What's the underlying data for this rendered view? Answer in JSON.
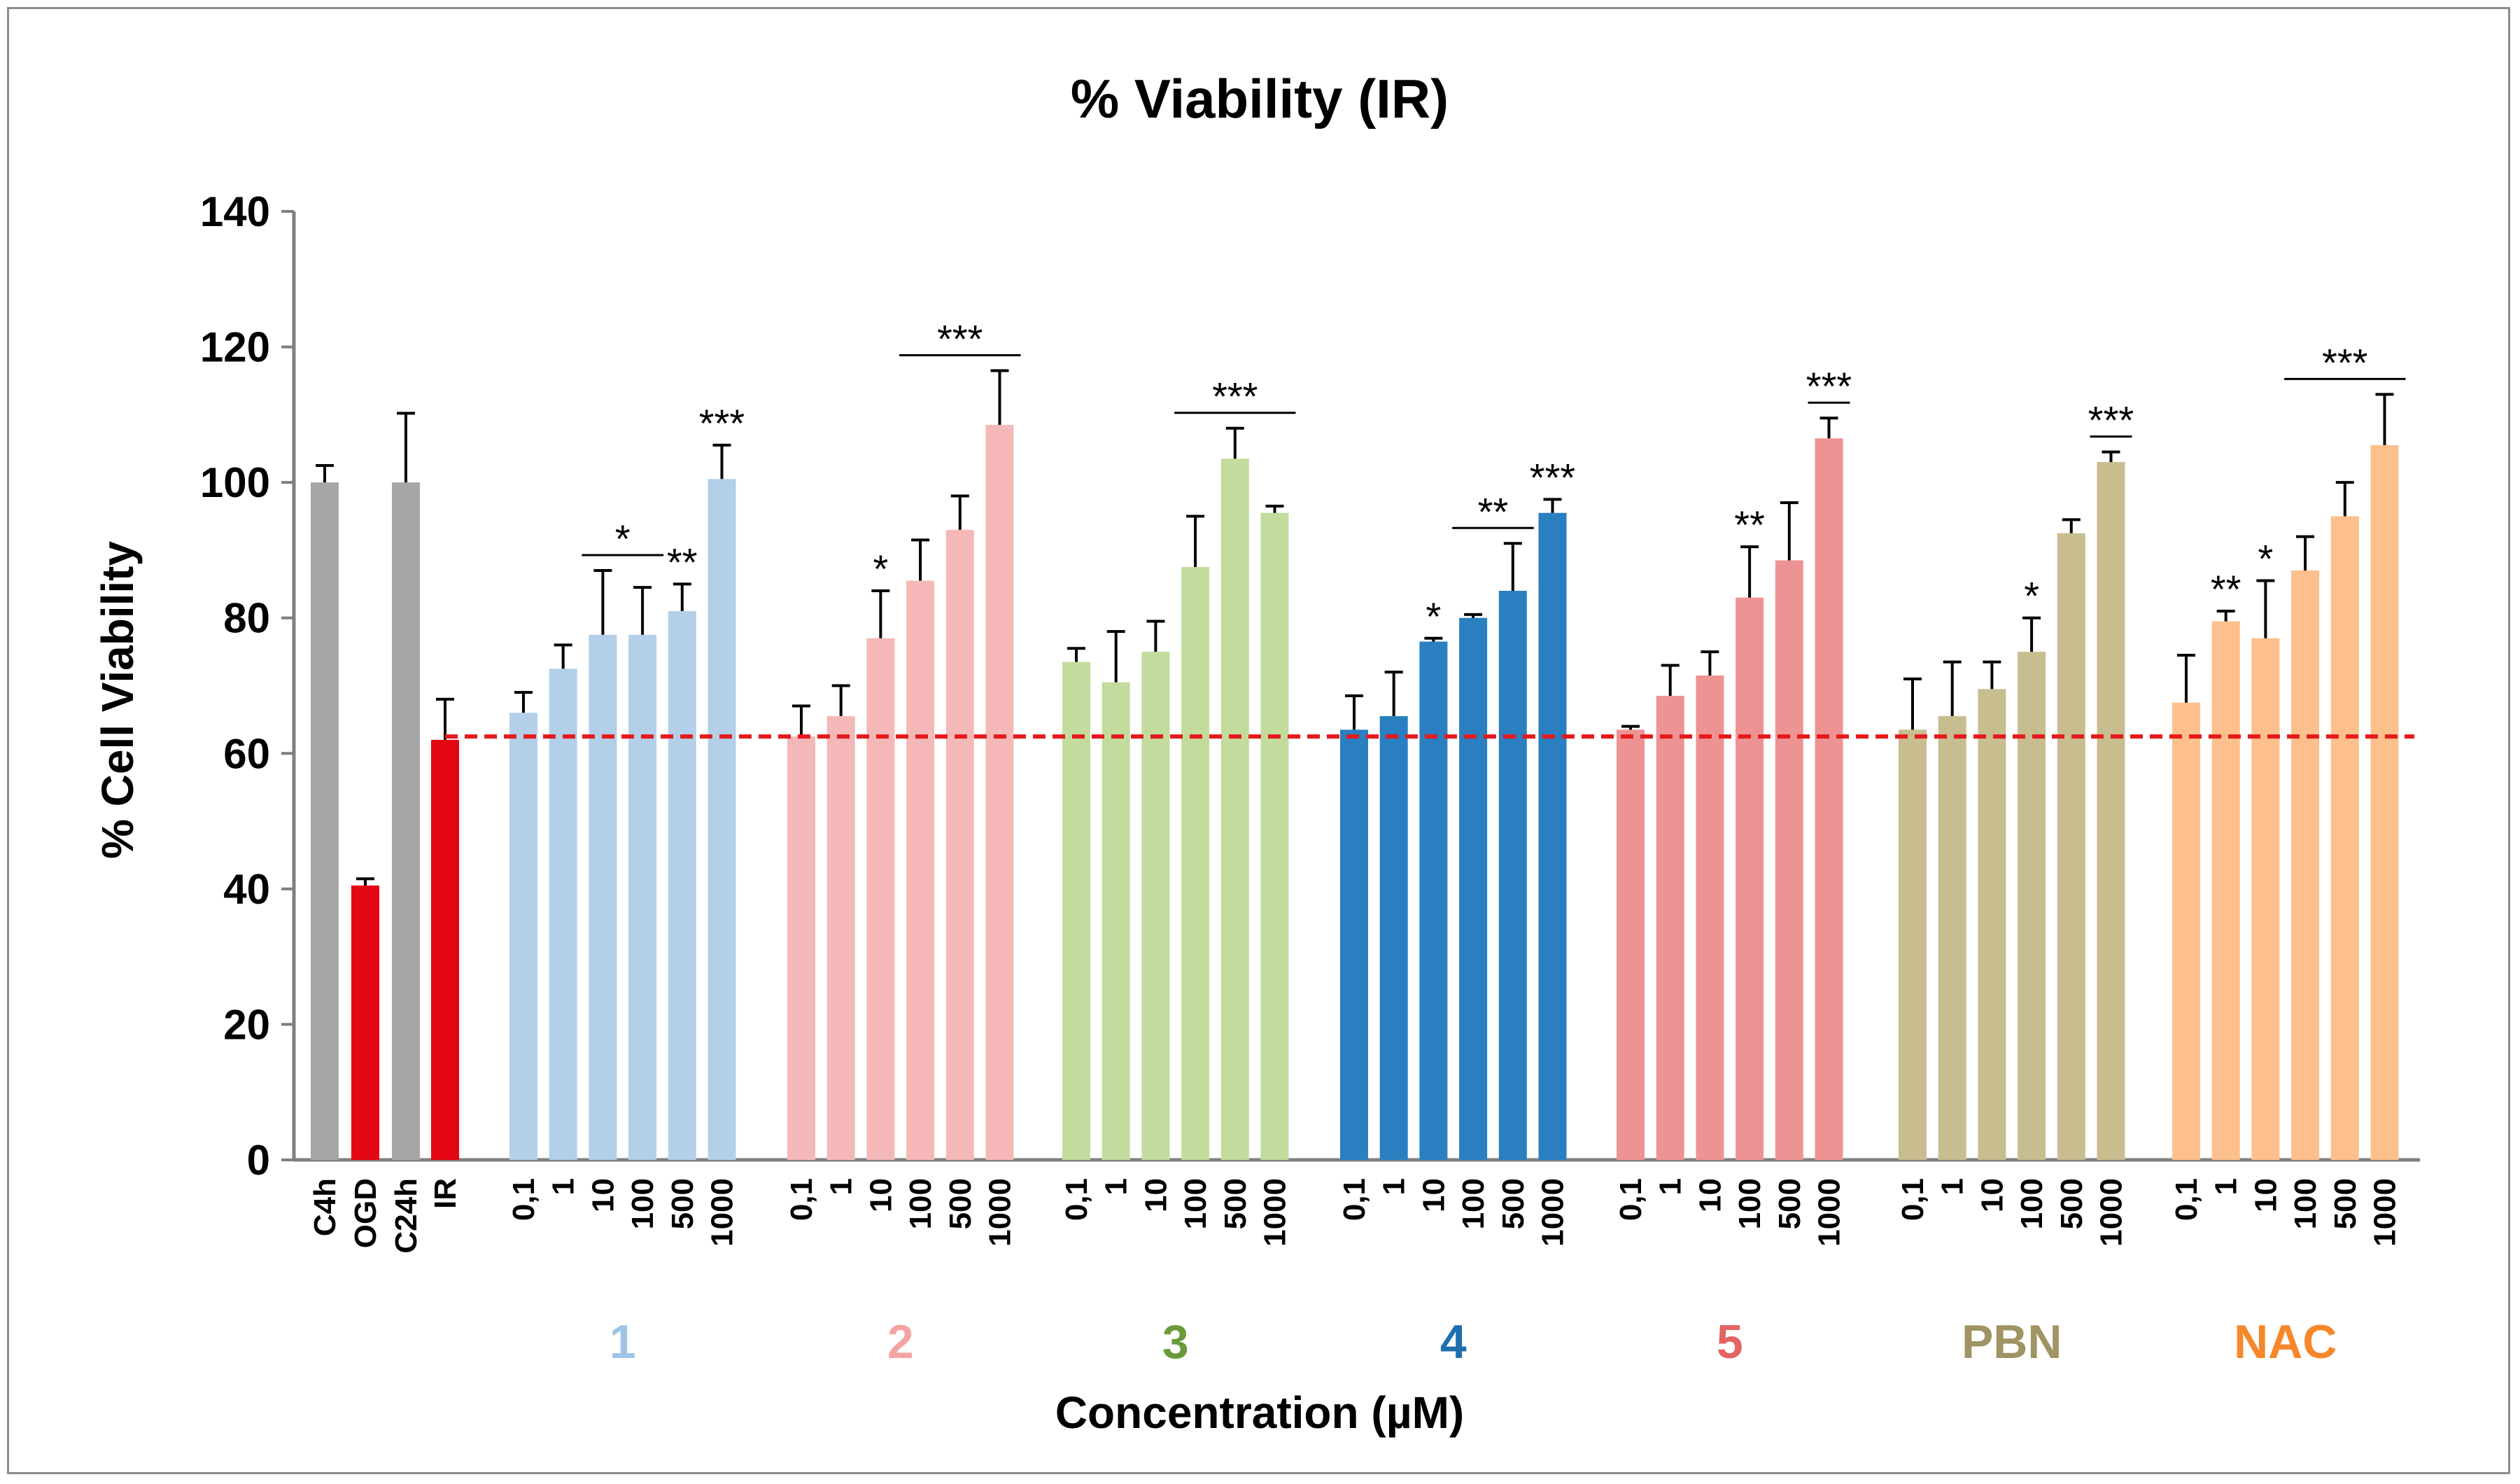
{
  "chart_data": {
    "type": "bar",
    "title": "% Viability (IR)",
    "xlabel": "Concentration (µM)",
    "ylabel": "% Cell Viability",
    "ylim": [
      0,
      140
    ],
    "yticks": [
      "0",
      "20",
      "40",
      "60",
      "80",
      "100",
      "120",
      "140"
    ],
    "reference_line": {
      "value": 62.5,
      "color": "#e41a1c",
      "style": "dashed"
    },
    "controls": [
      {
        "label": "C4h",
        "value": 100.0,
        "error": 2.5,
        "color": "#a6a6a6"
      },
      {
        "label": "OGD",
        "value": 40.5,
        "error": 1.0,
        "color": "#e30613"
      },
      {
        "label": "C24h",
        "value": 100.0,
        "error": 10.2,
        "color": "#a6a6a6"
      },
      {
        "label": "IR",
        "value": 62.0,
        "error": 6.0,
        "color": "#e30613"
      }
    ],
    "concentrations": [
      "0,1",
      "1",
      "10",
      "100",
      "500",
      "1000"
    ],
    "groups": [
      {
        "name": "1",
        "color": "#b4cfe8",
        "label_color": "#9dc3e6",
        "values": [
          66.0,
          72.5,
          77.5,
          77.5,
          81.0,
          100.5
        ],
        "errors": [
          3.0,
          3.5,
          9.5,
          7.0,
          4.0,
          5.0
        ],
        "annotations": [
          {
            "text": "*",
            "from": 2,
            "to": 3,
            "bracket": true
          },
          {
            "text": "**",
            "from": 4,
            "to": 4,
            "bracket": false
          },
          {
            "text": "***",
            "from": 5,
            "to": 5,
            "bracket": false
          }
        ]
      },
      {
        "name": "2",
        "color": "#f5b8b8",
        "label_color": "#f4a3a3",
        "values": [
          62.5,
          65.5,
          77.0,
          85.5,
          93.0,
          108.5
        ],
        "errors": [
          4.5,
          4.5,
          7.0,
          6.0,
          5.0,
          8.0
        ],
        "annotations": [
          {
            "text": "*",
            "from": 2,
            "to": 2,
            "bracket": false
          },
          {
            "text": "***",
            "from": 3,
            "to": 5,
            "bracket": true
          }
        ]
      },
      {
        "name": "3",
        "color": "#c3dc9d",
        "label_color": "#6a9a3a",
        "values": [
          73.5,
          70.5,
          75.0,
          87.5,
          103.5,
          95.5
        ],
        "errors": [
          2.0,
          7.5,
          4.5,
          7.5,
          4.5,
          1.0
        ],
        "annotations": [
          {
            "text": "***",
            "from": 3,
            "to": 5,
            "bracket": true
          }
        ]
      },
      {
        "name": "4",
        "color": "#2a7fc1",
        "label_color": "#1f6fb0",
        "values": [
          63.5,
          65.5,
          76.5,
          80.0,
          84.0,
          95.5
        ],
        "errors": [
          5.0,
          6.5,
          0.5,
          0.5,
          7.0,
          2.0
        ],
        "annotations": [
          {
            "text": "*",
            "from": 2,
            "to": 2,
            "bracket": false
          },
          {
            "text": "**",
            "from": 3,
            "to": 4,
            "bracket": true
          },
          {
            "text": "***",
            "from": 5,
            "to": 5,
            "bracket": false
          }
        ]
      },
      {
        "name": "5",
        "color": "#ee9393",
        "label_color": "#e36363",
        "values": [
          63.5,
          68.5,
          71.5,
          83.0,
          88.5,
          106.5
        ],
        "errors": [
          0.5,
          4.5,
          3.5,
          7.5,
          8.5,
          3.0
        ],
        "annotations": [
          {
            "text": "**",
            "from": 3,
            "to": 3,
            "bracket": false
          },
          {
            "text": "***",
            "from": 5,
            "to": 5,
            "bracket": true
          }
        ]
      },
      {
        "name": "PBN",
        "color": "#c8bd8f",
        "label_color": "#a09364",
        "values": [
          63.5,
          65.5,
          69.5,
          75.0,
          92.5,
          103.0
        ],
        "errors": [
          7.5,
          8.0,
          4.0,
          5.0,
          2.0,
          1.5
        ],
        "annotations": [
          {
            "text": "*",
            "from": 3,
            "to": 3,
            "bracket": false
          },
          {
            "text": "***",
            "from": 5,
            "to": 5,
            "bracket": true
          }
        ]
      },
      {
        "name": "NAC",
        "color": "#fdc08c",
        "label_color": "#f7872a",
        "values": [
          67.5,
          79.5,
          77.0,
          87.0,
          95.0,
          105.5
        ],
        "errors": [
          7.0,
          1.5,
          8.5,
          5.0,
          5.0,
          7.5
        ],
        "annotations": [
          {
            "text": "**",
            "from": 1,
            "to": 1,
            "bracket": false
          },
          {
            "text": "*",
            "from": 2,
            "to": 2,
            "bracket": false
          },
          {
            "text": "***",
            "from": 3,
            "to": 5,
            "bracket": true
          }
        ]
      }
    ]
  }
}
